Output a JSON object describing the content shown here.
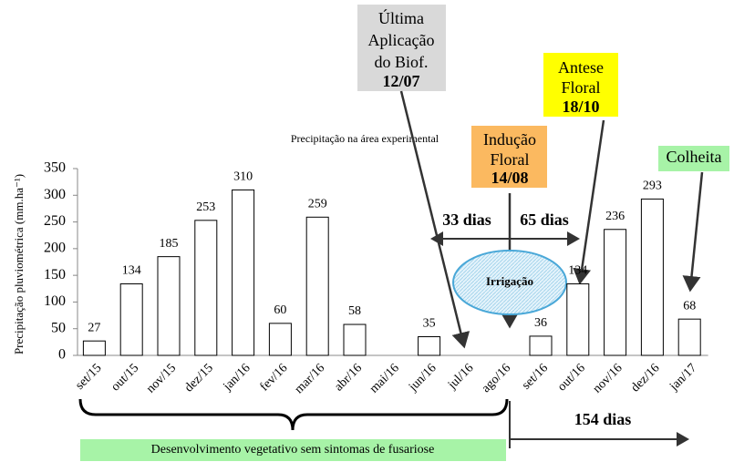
{
  "chart_data": {
    "type": "bar",
    "title": "Precipitação na área experimental",
    "y_label": "Precipitação pluviométrica (mm.ha⁻¹)",
    "categories": [
      "set/15",
      "out/15",
      "nov/15",
      "dez/15",
      "jan/16",
      "fev/16",
      "mar/16",
      "abr/16",
      "mai/16",
      "jun/16",
      "jul/16",
      "ago/16",
      "set/16",
      "out/16",
      "nov/16",
      "dez/16",
      "jan/17"
    ],
    "values": [
      27,
      134,
      185,
      253,
      310,
      60,
      259,
      58,
      null,
      35,
      null,
      null,
      36,
      134,
      236,
      293,
      68
    ],
    "color": "#ffffff",
    "edge_color": "#000000",
    "ylim": [
      0,
      350
    ],
    "yticks": [
      0,
      50,
      100,
      150,
      200,
      250,
      300,
      350
    ],
    "grid": false,
    "annotations": {
      "last_application": [
        "Última",
        "Aplicação",
        "do Biof.",
        "12/07"
      ],
      "floral_induction": [
        "Indução",
        "Floral",
        "14/08"
      ],
      "anthesis": [
        "Antese",
        "Floral",
        "18/10"
      ],
      "harvest": "Colheita",
      "irrigation": "Irrigação",
      "days_33": "33 dias",
      "days_65": "65 dias",
      "days_154": "154 dias",
      "vegetative": "Desenvolvimento vegetativo sem sintomas de fusariose"
    }
  }
}
